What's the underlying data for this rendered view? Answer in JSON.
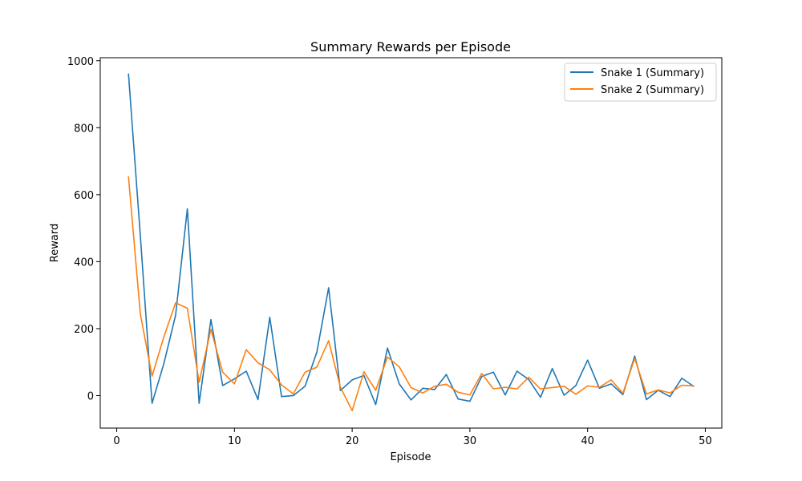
{
  "chart_data": {
    "type": "line",
    "title": "Summary Rewards per Episode",
    "xlabel": "Episode",
    "ylabel": "Reward",
    "xlim": [
      -1.4,
      51.4
    ],
    "ylim": [
      -97,
      1009
    ],
    "xticks": [
      0,
      10,
      20,
      30,
      40,
      50
    ],
    "yticks": [
      0,
      200,
      400,
      600,
      800,
      1000
    ],
    "grid": false,
    "legend_position": "top-right",
    "x": [
      1,
      2,
      3,
      4,
      5,
      6,
      7,
      8,
      9,
      10,
      11,
      12,
      13,
      14,
      15,
      16,
      17,
      18,
      19,
      20,
      21,
      22,
      23,
      24,
      25,
      26,
      27,
      28,
      29,
      30,
      31,
      32,
      33,
      34,
      35,
      36,
      37,
      38,
      39,
      40,
      41,
      42,
      43,
      44,
      45,
      46,
      47,
      48,
      49
    ],
    "series": [
      {
        "name": "Snake 1 (Summary)",
        "color": "#1f77b4",
        "values": [
          960,
          480,
          -23,
          95,
          240,
          558,
          -23,
          227,
          30,
          50,
          73,
          -12,
          234,
          -3,
          0,
          28,
          130,
          322,
          15,
          47,
          60,
          -27,
          142,
          35,
          -13,
          22,
          18,
          63,
          -10,
          -17,
          57,
          70,
          2,
          73,
          48,
          -5,
          81,
          1,
          30,
          106,
          22,
          35,
          3,
          118,
          -12,
          16,
          -3,
          52,
          28
        ]
      },
      {
        "name": "Snake 2 (Summary)",
        "color": "#ff7f0e",
        "values": [
          653,
          245,
          58,
          175,
          277,
          261,
          40,
          198,
          70,
          35,
          137,
          98,
          77,
          32,
          5,
          70,
          85,
          164,
          25,
          -45,
          71,
          16,
          115,
          86,
          24,
          8,
          28,
          34,
          10,
          2,
          66,
          20,
          25,
          20,
          55,
          20,
          24,
          28,
          4,
          29,
          25,
          47,
          7,
          111,
          5,
          17,
          8,
          31,
          29
        ]
      }
    ]
  }
}
